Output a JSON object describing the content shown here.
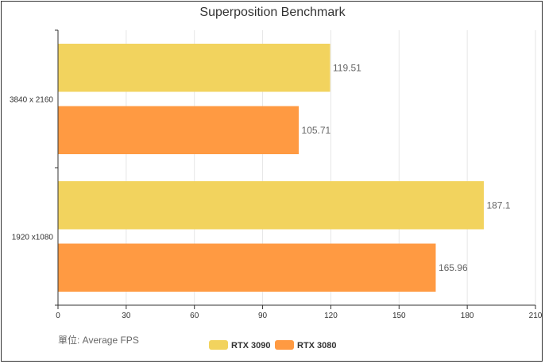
{
  "chart_data": {
    "type": "bar",
    "orientation": "horizontal",
    "title": "Superposition Benchmark",
    "categories": [
      "3840 x 2160",
      "1920 x1080"
    ],
    "series": [
      {
        "name": "RTX 3090",
        "values": [
          119.51,
          187.1
        ],
        "color": "#F2D35E"
      },
      {
        "name": "RTX 3080",
        "values": [
          105.71,
          165.96
        ],
        "color": "#FF9A42"
      }
    ],
    "xlim": [
      0,
      210
    ],
    "xticks": [
      0,
      30,
      60,
      90,
      120,
      150,
      180,
      210
    ],
    "grid": true,
    "legend": "bottom-center",
    "unit_note": "單位: Average FPS"
  }
}
